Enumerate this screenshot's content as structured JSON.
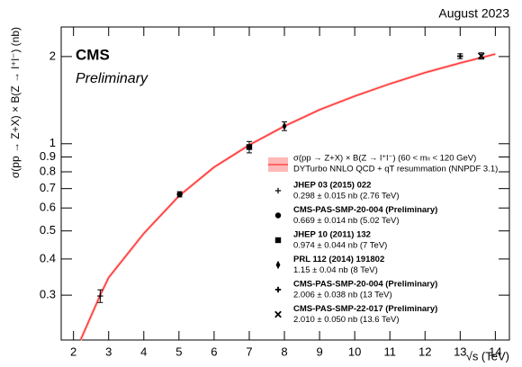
{
  "chart_data": {
    "type": "scatter",
    "top_label": "August 2023",
    "experiment": "CMS",
    "status": "Preliminary",
    "xlabel": "√s (TeV)",
    "ylabel": "σ(pp → Z+X) × B(Z → l⁺l⁻) (nb)",
    "xlim": [
      1.65,
      14.4
    ],
    "ylim": [
      0.21,
      2.53
    ],
    "ylog": true,
    "xticks": [
      2,
      3,
      4,
      5,
      6,
      7,
      8,
      9,
      10,
      11,
      12,
      13,
      14
    ],
    "yticks": [
      0.3,
      0.4,
      0.5,
      0.6,
      0.7,
      0.8,
      0.9,
      1,
      2
    ],
    "theory": {
      "name": "σ(pp → Z+X) × B(Z → l⁺l⁻) (60 < mₗₗ < 120 GeV)",
      "label": "DYTurbo NNLO QCD + qT resummation (NNPDF 3.1)",
      "color": "#ff3030",
      "band_color": "#ffb8b8",
      "x": [
        2.2,
        2.76,
        3,
        4,
        5,
        6,
        7,
        8,
        9,
        10,
        11,
        12,
        13,
        14
      ],
      "values": [
        0.21,
        0.3,
        0.345,
        0.49,
        0.66,
        0.83,
        0.99,
        1.15,
        1.31,
        1.46,
        1.61,
        1.76,
        1.9,
        2.04
      ]
    },
    "series": [
      {
        "name": "JHEP 03 (2015) 022",
        "marker": "star",
        "color": "#000000",
        "x": [
          2.76
        ],
        "values": [
          0.298
        ],
        "errors": [
          0.015
        ],
        "value_labels": [
          "0.298 ± 0.015 nb (2.76 TeV)"
        ]
      },
      {
        "name": "CMS-PAS-SMP-20-004 (Preliminary)",
        "marker": "circle",
        "color": "#000000",
        "x": [
          5.02
        ],
        "values": [
          0.669
        ],
        "errors": [
          0.014
        ],
        "value_labels": [
          "0.669 ± 0.014 nb (5.02 TeV)"
        ]
      },
      {
        "name": "JHEP 10 (2011) 132",
        "marker": "square",
        "color": "#000000",
        "x": [
          7
        ],
        "values": [
          0.974
        ],
        "errors": [
          0.044
        ],
        "value_labels": [
          "0.974 ± 0.044 nb (7 TeV)"
        ]
      },
      {
        "name": "PRL 112 (2014) 191802",
        "marker": "diamond",
        "color": "#000000",
        "x": [
          8
        ],
        "values": [
          1.15
        ],
        "errors": [
          0.04
        ],
        "value_labels": [
          "1.15 ± 0.04 nb (8 TeV)"
        ]
      },
      {
        "name": "CMS-PAS-SMP-20-004 (Preliminary)",
        "marker": "plus",
        "color": "#000000",
        "x": [
          13
        ],
        "values": [
          2.006
        ],
        "errors": [
          0.038
        ],
        "value_labels": [
          "2.006 ± 0.038 nb (13 TeV)"
        ]
      },
      {
        "name": "CMS-PAS-SMP-22-017 (Preliminary)",
        "marker": "x",
        "color": "#000000",
        "x": [
          13.6
        ],
        "values": [
          2.01
        ],
        "errors": [
          0.05
        ],
        "value_labels": [
          "2.010 ± 0.050 nb (13.6 TeV)"
        ]
      }
    ]
  }
}
